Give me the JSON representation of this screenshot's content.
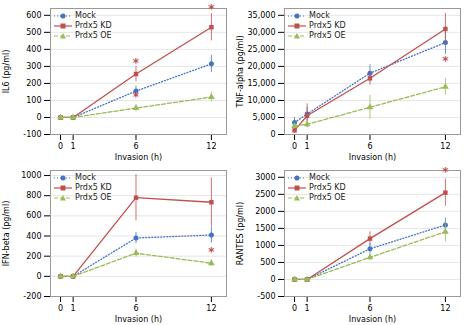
{
  "chart_data": [
    {
      "type": "line",
      "xlabel": "Invasion (h)",
      "ylabel": "IL6 (pg/ml)",
      "x": [
        0,
        1,
        6,
        12
      ],
      "xlim": [
        -0.8,
        13.2
      ],
      "xticks": [
        0,
        1,
        6,
        12
      ],
      "ylim": [
        -100,
        640
      ],
      "yticks": [
        -100,
        0,
        100,
        200,
        300,
        400,
        500,
        600
      ],
      "grid": true,
      "legend": "upper left",
      "series": [
        {
          "name": "Mock",
          "color": "#4472c4",
          "marker": "circle",
          "line_style": "dotted",
          "values": [
            0,
            0,
            155,
            315
          ],
          "yerr": [
            4,
            4,
            30,
            50
          ]
        },
        {
          "name": "Prdx5 KD",
          "color": "#c0504d",
          "marker": "square",
          "line_style": "solid",
          "values": [
            0,
            0,
            255,
            530
          ],
          "yerr": [
            4,
            4,
            45,
            80
          ]
        },
        {
          "name": "Prdx5 OE",
          "color": "#9bbb59",
          "marker": "triangle",
          "line_style": "dashed",
          "values": [
            0,
            0,
            55,
            120
          ],
          "yerr": [
            4,
            4,
            20,
            30
          ]
        }
      ],
      "annotations": [
        {
          "x": 6,
          "y": 295,
          "text": "*",
          "color": "#c0504d"
        },
        {
          "x": 6,
          "y": 95,
          "text": "*",
          "color": "#c0504d"
        },
        {
          "x": 12,
          "y": 615,
          "text": "*",
          "color": "#c0504d"
        }
      ]
    },
    {
      "type": "line",
      "xlabel": "Invasion (h)",
      "ylabel": "TNF-alpha (pg/ml)",
      "x": [
        0,
        1,
        6,
        12
      ],
      "xlim": [
        -0.8,
        13.2
      ],
      "xticks": [
        0,
        1,
        6,
        12
      ],
      "ylim": [
        0,
        37000
      ],
      "yticks": [
        0,
        {
          "value": 5000,
          "label": "5,000"
        },
        {
          "value": 10000,
          "label": "10,000"
        },
        {
          "value": 15000,
          "label": "15,000"
        },
        {
          "value": 20000,
          "label": "20,000"
        },
        {
          "value": 25000,
          "label": "25,000"
        },
        {
          "value": 30000,
          "label": "30,000"
        },
        {
          "value": 35000,
          "label": "35,000"
        }
      ],
      "grid": true,
      "legend": "upper left",
      "series": [
        {
          "name": "Mock",
          "color": "#4472c4",
          "marker": "circle",
          "line_style": "dotted",
          "values": [
            3500,
            6000,
            18000,
            27000
          ],
          "yerr": [
            1500,
            2000,
            2500,
            3500
          ]
        },
        {
          "name": "Prdx5 KD",
          "color": "#c0504d",
          "marker": "square",
          "line_style": "solid",
          "values": [
            1200,
            5500,
            16500,
            31000
          ],
          "yerr": [
            500,
            3500,
            2000,
            4500
          ]
        },
        {
          "name": "Prdx5 OE",
          "color": "#9bbb59",
          "marker": "triangle",
          "line_style": "dashed",
          "values": [
            2500,
            3000,
            8000,
            14000
          ],
          "yerr": [
            500,
            1000,
            3500,
            2500
          ]
        }
      ],
      "annotations": [
        {
          "x": 12,
          "y": 20500,
          "text": "*",
          "color": "#c0504d"
        }
      ]
    },
    {
      "type": "line",
      "xlabel": "Invasion (h)",
      "ylabel": "IFN-beta (pg/ml)",
      "x": [
        0,
        1,
        6,
        12
      ],
      "xlim": [
        -0.8,
        13.2
      ],
      "xticks": [
        0,
        1,
        6,
        12
      ],
      "ylim": [
        -200,
        1050
      ],
      "yticks": [
        -200,
        0,
        200,
        400,
        600,
        800,
        1000
      ],
      "grid": true,
      "legend": "upper left",
      "series": [
        {
          "name": "Mock",
          "color": "#4472c4",
          "marker": "circle",
          "line_style": "dotted",
          "values": [
            0,
            0,
            380,
            410
          ],
          "yerr": [
            4,
            4,
            55,
            80
          ]
        },
        {
          "name": "Prdx5 KD",
          "color": "#c0504d",
          "marker": "square",
          "line_style": "solid",
          "values": [
            0,
            0,
            780,
            735
          ],
          "yerr": [
            4,
            4,
            230,
            240
          ]
        },
        {
          "name": "Prdx5 OE",
          "color": "#9bbb59",
          "marker": "triangle",
          "line_style": "dashed",
          "values": [
            0,
            0,
            230,
            130
          ],
          "yerr": [
            4,
            4,
            40,
            30
          ]
        }
      ],
      "annotations": [
        {
          "x": 12,
          "y": 205,
          "text": "*",
          "color": "#c0504d"
        }
      ]
    },
    {
      "type": "line",
      "xlabel": "Invasion (h)",
      "ylabel": "RANTES (pg/ml)",
      "x": [
        0,
        1,
        6,
        12
      ],
      "xlim": [
        -0.8,
        13.2
      ],
      "xticks": [
        0,
        1,
        6,
        12
      ],
      "ylim": [
        -500,
        3200
      ],
      "yticks": [
        -500,
        0,
        500,
        1000,
        1500,
        2000,
        2500,
        3000
      ],
      "grid": true,
      "legend": "upper left",
      "series": [
        {
          "name": "Mock",
          "color": "#4472c4",
          "marker": "circle",
          "line_style": "dotted",
          "values": [
            0,
            0,
            900,
            1600
          ],
          "yerr": [
            4,
            4,
            150,
            200
          ]
        },
        {
          "name": "Prdx5 KD",
          "color": "#c0504d",
          "marker": "square",
          "line_style": "solid",
          "values": [
            0,
            0,
            1200,
            2550
          ],
          "yerr": [
            4,
            4,
            200,
            400
          ]
        },
        {
          "name": "Prdx5 OE",
          "color": "#9bbb59",
          "marker": "triangle",
          "line_style": "dashed",
          "values": [
            0,
            0,
            650,
            1400
          ],
          "yerr": [
            4,
            4,
            100,
            300
          ]
        }
      ],
      "annotations": [
        {
          "x": 12,
          "y": 3050,
          "text": "*",
          "color": "#c0504d"
        }
      ]
    }
  ]
}
